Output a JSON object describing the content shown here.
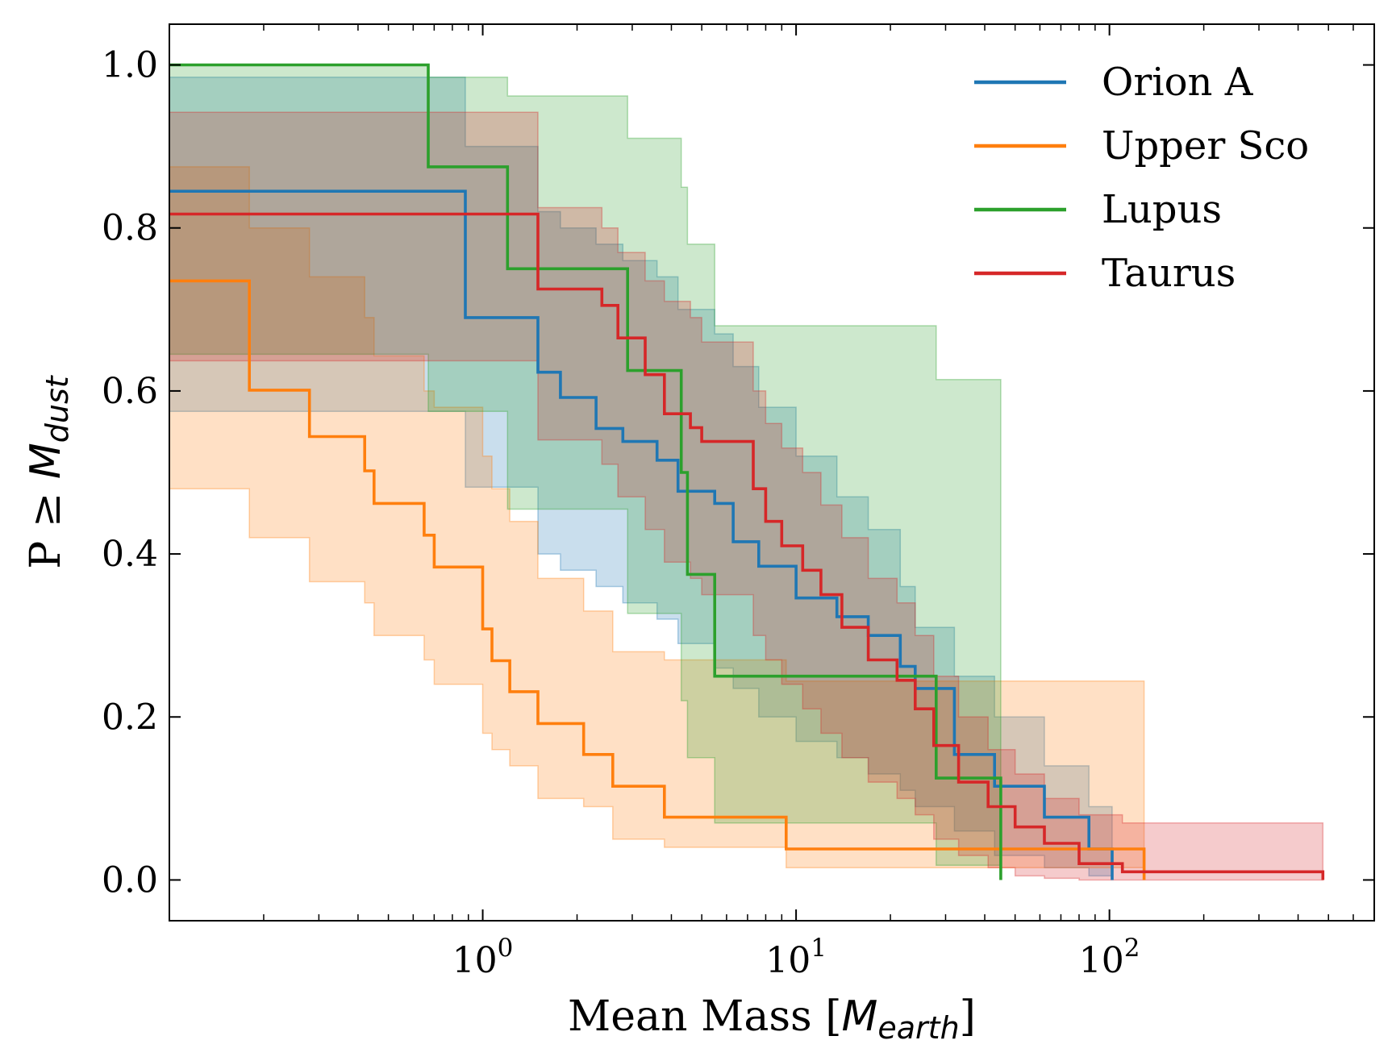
{
  "chart_data": {
    "type": "line",
    "subtype": "step-survival-with-confidence-bands",
    "xlabel_main": "Mean Mass [",
    "xlabel_math": "M",
    "xlabel_sub": "earth",
    "xlabel_close": "]",
    "ylabel_main": "P ≥ ",
    "ylabel_math": "M",
    "ylabel_sub": "dust",
    "xscale": "log",
    "xlim": [
      0.1,
      700
    ],
    "ylim": [
      -0.05,
      1.05
    ],
    "xticks": [
      {
        "value": 1,
        "base": "10",
        "exp": "0"
      },
      {
        "value": 10,
        "base": "10",
        "exp": "1"
      },
      {
        "value": 100,
        "base": "10",
        "exp": "2"
      }
    ],
    "yticks": [
      {
        "value": 0.0,
        "label": "0.0"
      },
      {
        "value": 0.2,
        "label": "0.2"
      },
      {
        "value": 0.4,
        "label": "0.4"
      },
      {
        "value": 0.6,
        "label": "0.6"
      },
      {
        "value": 0.8,
        "label": "0.8"
      },
      {
        "value": 1.0,
        "label": "1.0"
      }
    ],
    "legend_position": "top-right",
    "series": [
      {
        "name": "Orion A",
        "color": "#1f77b4",
        "band_color": "#1f77b4",
        "x": [
          0.1,
          0.88,
          1.5,
          1.77,
          2.3,
          2.8,
          3.6,
          4.2,
          5.5,
          6.3,
          7.6,
          10.0,
          13.5,
          17.0,
          21.5,
          24.0,
          32.0,
          43.0,
          62.0,
          86.0,
          102.0
        ],
        "y": [
          0.845,
          0.69,
          0.623,
          0.592,
          0.554,
          0.538,
          0.515,
          0.477,
          0.462,
          0.415,
          0.385,
          0.346,
          0.323,
          0.3,
          0.262,
          0.235,
          0.154,
          0.115,
          0.077,
          0.038,
          0.0
        ],
        "lower": [
          0.575,
          0.482,
          0.4,
          0.38,
          0.36,
          0.34,
          0.32,
          0.29,
          0.26,
          0.235,
          0.2,
          0.17,
          0.15,
          0.13,
          0.11,
          0.09,
          0.06,
          0.03,
          0.015,
          0.005,
          0.0
        ],
        "upper": [
          0.985,
          0.9,
          0.82,
          0.8,
          0.78,
          0.76,
          0.74,
          0.7,
          0.67,
          0.63,
          0.58,
          0.52,
          0.47,
          0.43,
          0.36,
          0.31,
          0.25,
          0.2,
          0.14,
          0.09,
          0.05
        ]
      },
      {
        "name": "Upper Sco",
        "color": "#ff7f0e",
        "band_color": "#ff7f0e",
        "x": [
          0.1,
          0.18,
          0.28,
          0.42,
          0.45,
          0.65,
          0.7,
          1.0,
          1.07,
          1.22,
          1.5,
          2.1,
          2.6,
          3.8,
          9.3,
          129.0
        ],
        "y": [
          0.735,
          0.601,
          0.544,
          0.502,
          0.462,
          0.423,
          0.384,
          0.308,
          0.269,
          0.231,
          0.192,
          0.154,
          0.115,
          0.077,
          0.038,
          0.0
        ],
        "lower": [
          0.48,
          0.42,
          0.366,
          0.34,
          0.3,
          0.27,
          0.24,
          0.18,
          0.16,
          0.14,
          0.1,
          0.09,
          0.05,
          0.04,
          0.015,
          0.0
        ],
        "upper": [
          0.875,
          0.8,
          0.74,
          0.69,
          0.643,
          0.6,
          0.58,
          0.52,
          0.48,
          0.44,
          0.37,
          0.33,
          0.28,
          0.27,
          0.244,
          0.0
        ]
      },
      {
        "name": "Lupus",
        "color": "#2ca02c",
        "band_color": "#2ca02c",
        "x": [
          0.1,
          0.67,
          1.2,
          2.9,
          4.3,
          4.5,
          5.5,
          28.0,
          45.0
        ],
        "y": [
          1.0,
          0.875,
          0.75,
          0.625,
          0.5,
          0.375,
          0.25,
          0.125,
          0.0
        ],
        "lower": [
          0.645,
          0.575,
          0.455,
          0.327,
          0.22,
          0.15,
          0.07,
          0.018,
          0.0
        ],
        "upper": [
          1.0,
          0.985,
          0.962,
          0.91,
          0.85,
          0.78,
          0.68,
          0.614,
          0.0
        ]
      },
      {
        "name": "Taurus",
        "color": "#d62728",
        "band_color": "#d62728",
        "x": [
          0.1,
          1.5,
          2.4,
          2.7,
          3.3,
          3.8,
          4.6,
          5.0,
          7.3,
          8.0,
          9.0,
          10.5,
          12.0,
          14.0,
          17.0,
          21.0,
          24.0,
          27.5,
          33.0,
          41.0,
          50.0,
          62.0,
          80.0,
          110.0,
          480.0
        ],
        "y": [
          0.817,
          0.725,
          0.705,
          0.665,
          0.62,
          0.572,
          0.555,
          0.538,
          0.48,
          0.44,
          0.41,
          0.38,
          0.35,
          0.31,
          0.27,
          0.245,
          0.21,
          0.165,
          0.12,
          0.09,
          0.065,
          0.045,
          0.02,
          0.01,
          0.0
        ],
        "lower": [
          0.637,
          0.54,
          0.51,
          0.47,
          0.43,
          0.39,
          0.37,
          0.35,
          0.3,
          0.27,
          0.24,
          0.21,
          0.18,
          0.15,
          0.12,
          0.1,
          0.08,
          0.05,
          0.03,
          0.015,
          0.005,
          0.002,
          0.0,
          0.0,
          0.0
        ],
        "upper": [
          0.942,
          0.825,
          0.8,
          0.77,
          0.735,
          0.71,
          0.69,
          0.66,
          0.6,
          0.56,
          0.53,
          0.5,
          0.46,
          0.42,
          0.37,
          0.34,
          0.3,
          0.25,
          0.2,
          0.16,
          0.13,
          0.1,
          0.08,
          0.07,
          0.0
        ]
      }
    ]
  }
}
